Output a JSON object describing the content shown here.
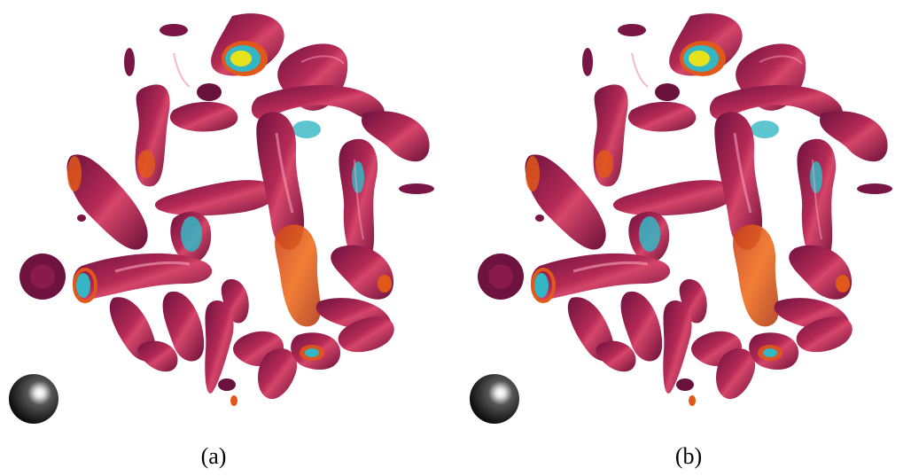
{
  "figure": {
    "panels": [
      {
        "label": "(a)",
        "view": "left-eye-view"
      },
      {
        "label": "(b)",
        "view": "right-eye-view"
      }
    ],
    "colors": {
      "outer_surface": "#8a1a4a",
      "surface_highlight": "#c2305a",
      "inner_surface": "#e0581a",
      "core_surface": "#34b7c4",
      "peak_surface": "#e6e21c",
      "light_probe_sphere": "#3a3a3a"
    },
    "icons": [
      "light-probe-sphere-icon"
    ]
  }
}
